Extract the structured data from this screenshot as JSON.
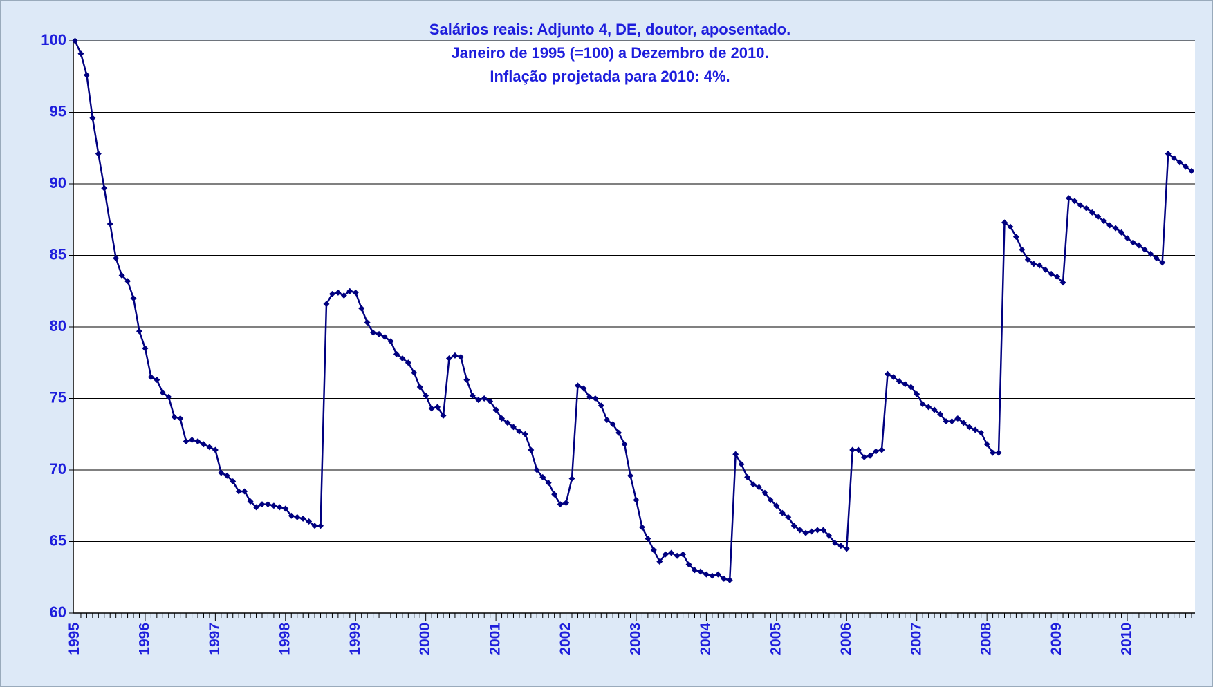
{
  "chart_data": {
    "type": "line",
    "title": [
      "Salários reais: Adjunto 4, DE, doutor, aposentado.",
      "Janeiro de 1995 (=100) a Dezembro de 2010.",
      "Inflação projetada para 2010: 4%."
    ],
    "categories": [
      "1995",
      null,
      null,
      null,
      null,
      null,
      null,
      null,
      null,
      null,
      null,
      null,
      "1996",
      null,
      null,
      null,
      null,
      null,
      null,
      null,
      null,
      null,
      null,
      null,
      "1997",
      null,
      null,
      null,
      null,
      null,
      null,
      null,
      null,
      null,
      null,
      null,
      "1998",
      null,
      null,
      null,
      null,
      null,
      null,
      null,
      null,
      null,
      null,
      null,
      "1999",
      null,
      null,
      null,
      null,
      null,
      null,
      null,
      null,
      null,
      null,
      null,
      "2000",
      null,
      null,
      null,
      null,
      null,
      null,
      null,
      null,
      null,
      null,
      null,
      "2001",
      null,
      null,
      null,
      null,
      null,
      null,
      null,
      null,
      null,
      null,
      null,
      "2002",
      null,
      null,
      null,
      null,
      null,
      null,
      null,
      null,
      null,
      null,
      null,
      "2003",
      null,
      null,
      null,
      null,
      null,
      null,
      null,
      null,
      null,
      null,
      null,
      "2004",
      null,
      null,
      null,
      null,
      null,
      null,
      null,
      null,
      null,
      null,
      null,
      "2005",
      null,
      null,
      null,
      null,
      null,
      null,
      null,
      null,
      null,
      null,
      null,
      "2006",
      null,
      null,
      null,
      null,
      null,
      null,
      null,
      null,
      null,
      null,
      null,
      "2007",
      null,
      null,
      null,
      null,
      null,
      null,
      null,
      null,
      null,
      null,
      null,
      "2008",
      null,
      null,
      null,
      null,
      null,
      null,
      null,
      null,
      null,
      null,
      null,
      "2009",
      null,
      null,
      null,
      null,
      null,
      null,
      null,
      null,
      null,
      null,
      null,
      "2010",
      null,
      null,
      null,
      null,
      null,
      null,
      null,
      null,
      null,
      null,
      null
    ],
    "series": [
      {
        "color": "#000080",
        "values": [
          100,
          99.1,
          97.6,
          94.6,
          92.1,
          89.7,
          87.2,
          84.8,
          83.6,
          83.2,
          82.0,
          79.7,
          78.5,
          76.5,
          76.3,
          75.4,
          75.1,
          73.7,
          73.6,
          72.0,
          72.1,
          72.0,
          71.8,
          71.6,
          71.4,
          69.8,
          69.6,
          69.2,
          68.5,
          68.5,
          67.8,
          67.4,
          67.6,
          67.6,
          67.5,
          67.4,
          67.3,
          66.8,
          66.7,
          66.6,
          66.4,
          66.1,
          66.1,
          81.6,
          82.3,
          82.4,
          82.2,
          82.5,
          82.4,
          81.3,
          80.3,
          79.6,
          79.5,
          79.3,
          79.0,
          78.1,
          77.8,
          77.5,
          76.8,
          75.8,
          75.2,
          74.3,
          74.4,
          73.8,
          77.8,
          78.0,
          77.9,
          76.3,
          75.2,
          74.9,
          75.0,
          74.8,
          74.2,
          73.6,
          73.3,
          73.0,
          72.7,
          72.5,
          71.4,
          70.0,
          69.5,
          69.1,
          68.3,
          67.6,
          67.7,
          69.4,
          75.9,
          75.7,
          75.1,
          75.0,
          74.5,
          73.5,
          73.2,
          72.6,
          71.8,
          69.6,
          67.9,
          66.0,
          65.2,
          64.4,
          63.6,
          64.1,
          64.2,
          64.0,
          64.1,
          63.4,
          63.0,
          62.9,
          62.7,
          62.6,
          62.7,
          62.4,
          62.3,
          71.1,
          70.4,
          69.5,
          69.0,
          68.8,
          68.4,
          67.9,
          67.5,
          67.0,
          66.7,
          66.1,
          65.8,
          65.6,
          65.7,
          65.8,
          65.8,
          65.4,
          64.9,
          64.7,
          64.5,
          71.4,
          71.4,
          70.9,
          71.0,
          71.3,
          71.4,
          76.7,
          76.5,
          76.2,
          76.0,
          75.8,
          75.3,
          74.6,
          74.4,
          74.2,
          73.9,
          73.4,
          73.4,
          73.6,
          73.3,
          73.0,
          72.8,
          72.6,
          71.8,
          71.2,
          71.2,
          87.3,
          87.0,
          86.3,
          85.4,
          84.7,
          84.4,
          84.3,
          84.0,
          83.7,
          83.5,
          83.1,
          89.0,
          88.8,
          88.5,
          88.3,
          88.0,
          87.7,
          87.4,
          87.1,
          86.9,
          86.6,
          86.2,
          85.9,
          85.7,
          85.4,
          85.1,
          84.8,
          84.5,
          92.1,
          91.8,
          91.5,
          91.2,
          90.9
        ]
      }
    ],
    "ylim": [
      60,
      100
    ],
    "yticks": [
      60,
      65,
      70,
      75,
      80,
      85,
      90,
      95,
      100
    ],
    "grid": true
  }
}
